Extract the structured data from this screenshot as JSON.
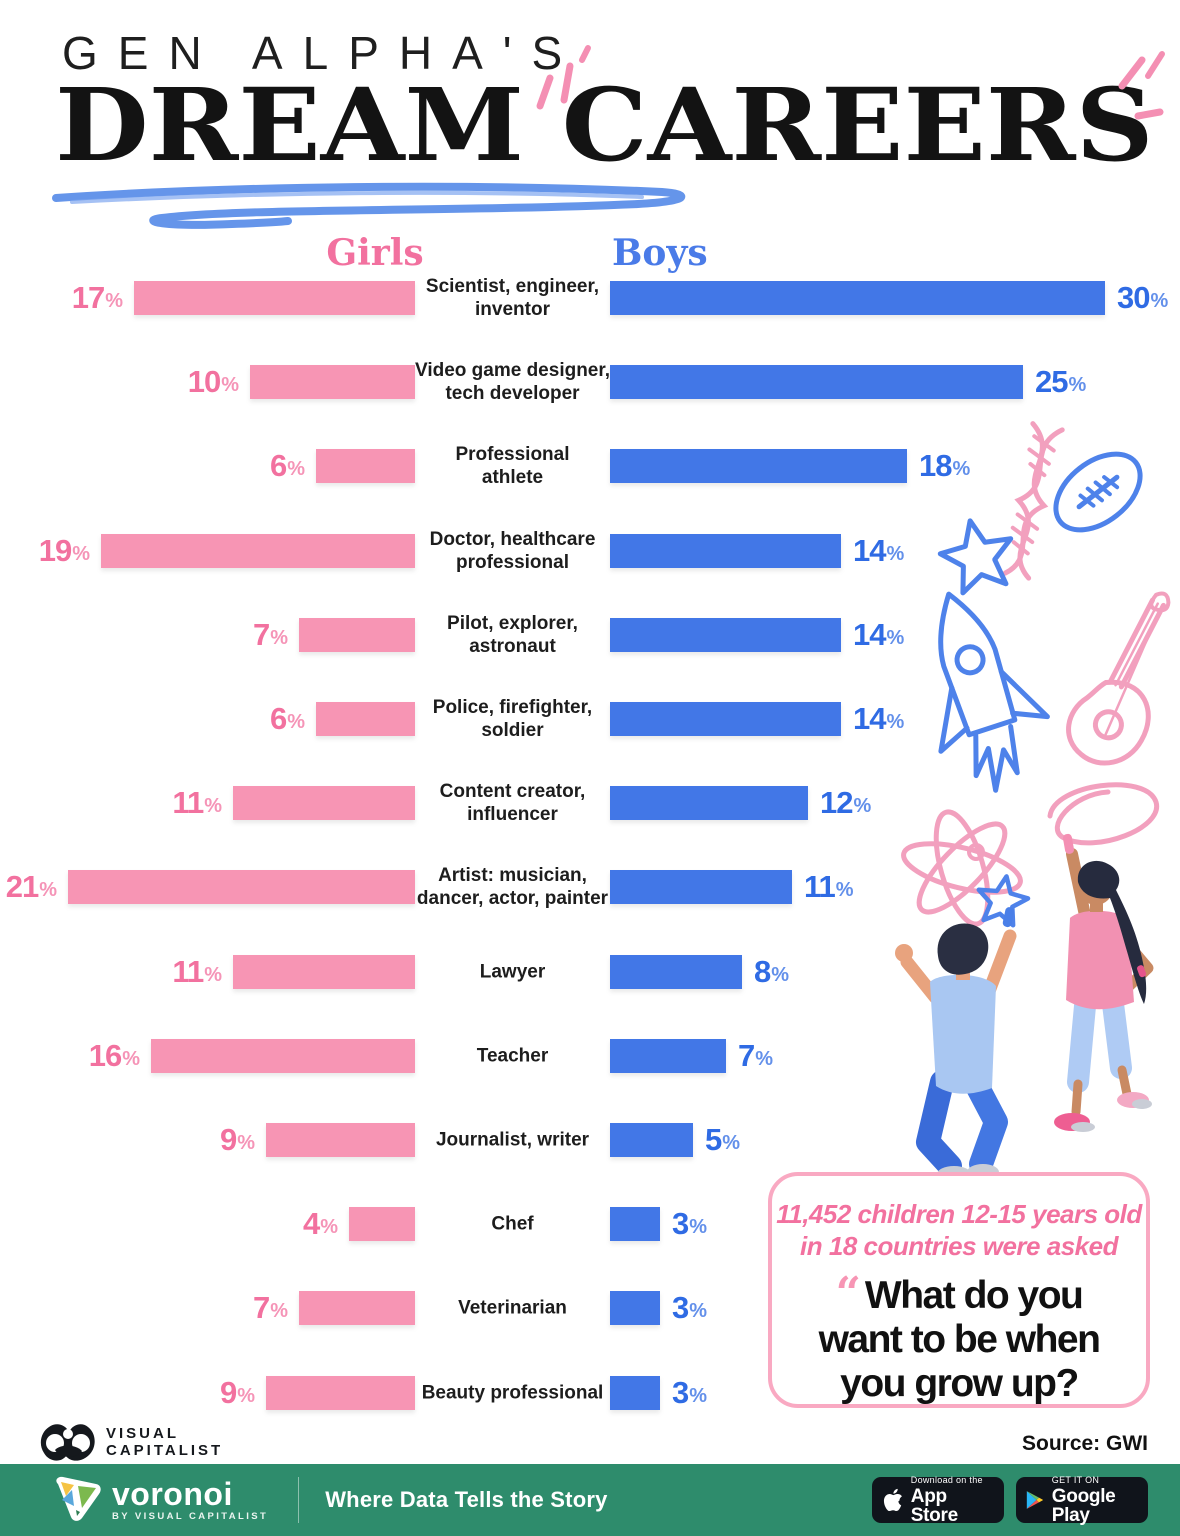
{
  "header": {
    "kicker": "GEN ALPHA'S",
    "title": "DREAM CAREERS"
  },
  "legend": {
    "girls": "Girls",
    "boys": "Boys"
  },
  "colors": {
    "girls_bar": "#F795B4",
    "boys_bar": "#4277E7",
    "girls_value": "#F2719F",
    "boys_value": "#2F6BE4",
    "footer_green": "#2E8C6C",
    "callout_border": "#F9A9C2"
  },
  "chart_data": {
    "type": "bar",
    "title": "Gen Alpha's Dream Careers",
    "unit": "%",
    "orientation": "horizontal-diverging",
    "legend_position": "top",
    "categories": [
      [
        "Scientist, engineer,",
        "inventor"
      ],
      [
        "Video game designer,",
        "tech developer"
      ],
      [
        "Professional",
        "athlete"
      ],
      [
        "Doctor, healthcare",
        "professional"
      ],
      [
        "Pilot, explorer,",
        "astronaut"
      ],
      [
        "Police, firefighter,",
        "soldier"
      ],
      [
        "Content creator,",
        "influencer"
      ],
      [
        "Artist: musician,",
        "dancer, actor, painter"
      ],
      [
        "Lawyer"
      ],
      [
        "Teacher"
      ],
      [
        "Journalist, writer"
      ],
      [
        "Chef"
      ],
      [
        "Veterinarian"
      ],
      [
        "Beauty professional"
      ]
    ],
    "series": [
      {
        "name": "Girls",
        "values": [
          17,
          10,
          6,
          19,
          7,
          6,
          11,
          21,
          11,
          16,
          9,
          4,
          7,
          9
        ]
      },
      {
        "name": "Boys",
        "values": [
          30,
          25,
          18,
          14,
          14,
          14,
          12,
          11,
          8,
          7,
          5,
          3,
          3,
          3
        ]
      }
    ],
    "xlim": [
      0,
      30
    ]
  },
  "callout": {
    "intro_line1": "11,452 children 12-15 years old",
    "intro_line2": "in 18 countries were asked",
    "quote_mark": "“",
    "quote_line1": "What do you",
    "quote_line2": "want to be when",
    "quote_line3": "you grow up?"
  },
  "attribution": {
    "logo_line1": "VISUAL",
    "logo_line2": "CAPITALIST",
    "source": "Source: GWI"
  },
  "footer": {
    "brand": "voronoi",
    "brand_sub": "BY VISUAL CAPITALIST",
    "tagline": "Where Data Tells the Story",
    "appstore_top": "Download on the",
    "appstore_bottom": "App Store",
    "gplay_top": "GET IT ON",
    "gplay_bottom": "Google Play"
  }
}
